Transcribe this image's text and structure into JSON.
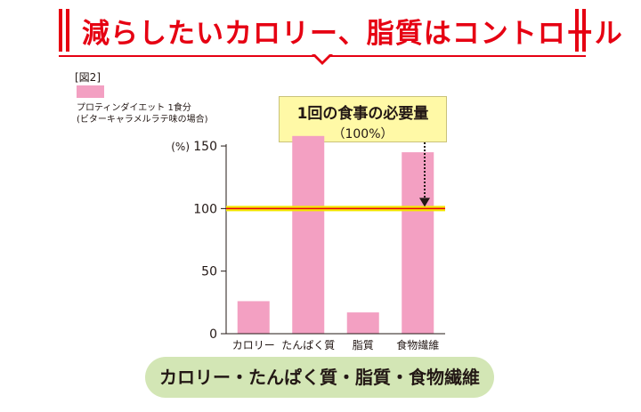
{
  "banner": {
    "title": "減らしたいカロリー、脂質はコントロール",
    "accent": "#e60012"
  },
  "figure_label": "[図2]",
  "legend": {
    "line1": "プロティンダイエット 1食分",
    "line2": "(ビターキャラメルラテ味の場合)",
    "color": "#f3a0c2"
  },
  "callout": {
    "line1": "1回の食事の必要量",
    "line2": "（100%）",
    "background": "#fff9a6"
  },
  "footer_label": "カロリー・たんぱく質・脂質・食物繊維",
  "chart_data": {
    "type": "bar",
    "categories": [
      "カロリー",
      "たんぱく質",
      "脂質",
      "食物繊維"
    ],
    "series": [
      {
        "name": "プロティンダイエット 1食分",
        "values": [
          26,
          158,
          17,
          145
        ]
      }
    ],
    "yunit": "(%)",
    "ylim": [
      0,
      160
    ],
    "yticks": [
      0,
      50,
      100,
      150
    ],
    "reference_line": {
      "value": 100,
      "color": "#f3e600",
      "core_color": "#e60012"
    },
    "bar_color": "#f3a0c2",
    "grid": false
  }
}
